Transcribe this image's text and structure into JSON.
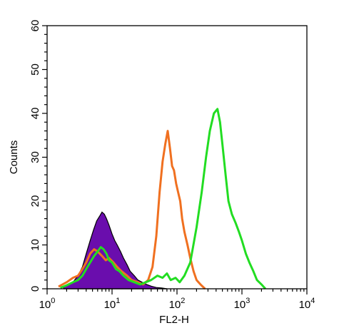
{
  "chart_data": {
    "type": "line",
    "title": "",
    "xlabel": "FL2-H",
    "ylabel": "Counts",
    "x_scale": "log",
    "xlim": [
      1,
      10000
    ],
    "ylim": [
      0,
      60
    ],
    "x_ticks": [
      {
        "value": 1,
        "base": "10",
        "exp": "0"
      },
      {
        "value": 10,
        "base": "10",
        "exp": "1"
      },
      {
        "value": 100,
        "base": "10",
        "exp": "2"
      },
      {
        "value": 1000,
        "base": "10",
        "exp": "3"
      },
      {
        "value": 10000,
        "base": "10",
        "exp": "4"
      }
    ],
    "y_ticks": [
      0,
      10,
      20,
      30,
      40,
      50,
      60
    ],
    "grid": false,
    "legend": "none",
    "series": [
      {
        "style": "filled",
        "color": "#6a0dad",
        "x": [
          1.8,
          2.1,
          2.5,
          3.0,
          3.5,
          4.0,
          4.6,
          5.2,
          5.8,
          6.4,
          7.0,
          7.6,
          8.2,
          9.0,
          10,
          11,
          12,
          13.5,
          15,
          17,
          19,
          22,
          25,
          29,
          34,
          40,
          48,
          58,
          70
        ],
        "y": [
          0.5,
          1,
          1.5,
          3,
          5,
          8,
          11,
          13.5,
          15.5,
          16.5,
          17.5,
          17,
          16,
          14.5,
          12.5,
          11,
          10,
          8.5,
          7,
          5.5,
          4,
          3,
          2,
          1.5,
          1,
          0.6,
          0.3,
          0.2,
          0
        ]
      },
      {
        "style": "line",
        "color": "#f07020",
        "x": [
          1.5,
          2.0,
          2.5,
          3.0,
          3.5,
          4.0,
          4.6,
          5.3,
          6.0,
          7.0,
          8.0,
          9.0,
          10.5,
          12,
          14,
          17,
          20,
          25,
          30,
          36,
          42,
          48,
          54,
          60,
          66,
          72,
          78,
          84,
          90,
          97,
          104,
          112,
          120,
          130,
          145,
          160,
          180,
          200,
          230,
          270
        ],
        "y": [
          0.5,
          1.5,
          2.5,
          3,
          4.5,
          6,
          8,
          9,
          8.5,
          7.5,
          6.5,
          7,
          6,
          5,
          4,
          3,
          2,
          1.5,
          1,
          2,
          5,
          12,
          22,
          29,
          33,
          36,
          32,
          28,
          27,
          24,
          22,
          20,
          16,
          13,
          10,
          7,
          4,
          2,
          1,
          0
        ]
      },
      {
        "style": "line",
        "color": "#22dd22",
        "x": [
          1.6,
          2.0,
          2.5,
          3.0,
          3.5,
          4.0,
          4.6,
          5.3,
          6.0,
          6.7,
          7.4,
          8.2,
          9.0,
          10,
          11.5,
          13,
          15,
          18,
          22,
          27,
          33,
          40,
          50,
          60,
          70,
          80,
          95,
          110,
          130,
          160,
          200,
          240,
          280,
          320,
          370,
          420,
          460,
          500,
          560,
          620,
          700,
          800,
          900,
          1000,
          1150,
          1300,
          1500,
          1700,
          2000,
          2300
        ],
        "y": [
          0.2,
          0.8,
          1.5,
          2,
          3,
          4.5,
          6,
          7.5,
          8.5,
          9.5,
          9,
          8,
          6.5,
          6,
          4.5,
          4,
          3,
          2,
          1.5,
          1,
          1.5,
          2,
          3,
          2.5,
          3.5,
          2,
          2.5,
          1.5,
          3,
          6,
          14,
          22,
          30,
          36,
          40,
          41,
          38,
          33,
          26,
          20,
          17,
          15,
          13,
          11,
          8,
          6,
          4,
          2,
          1,
          0
        ]
      }
    ]
  }
}
